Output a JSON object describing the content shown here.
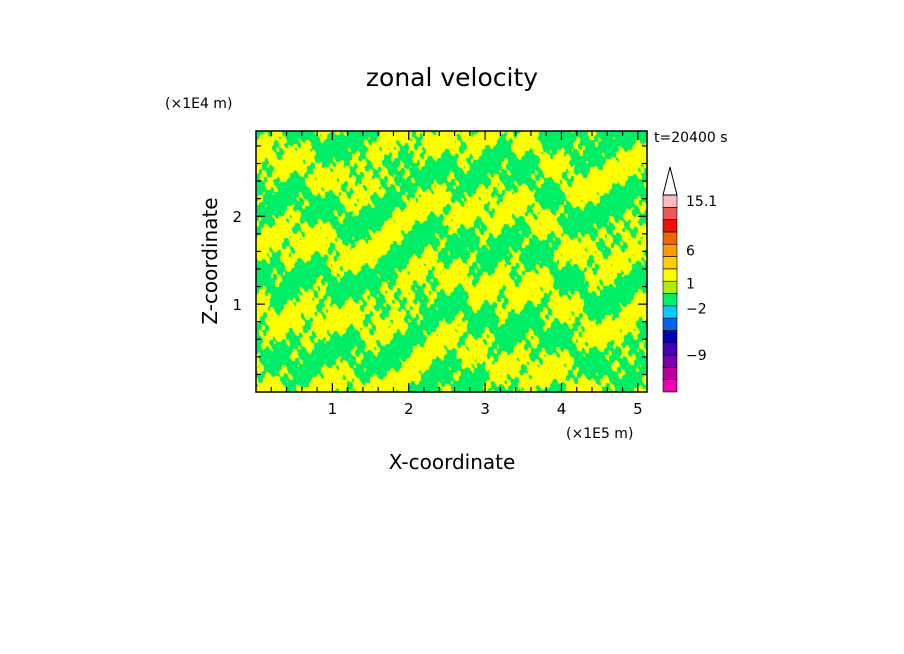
{
  "chart_data": {
    "type": "heatmap",
    "title": "zonal velocity",
    "xlabel": "X-coordinate",
    "ylabel": "Z-coordinate",
    "x_unit": "(×1E5 m)",
    "y_unit": "(×1E4 m)",
    "time_label": "t=20400 s",
    "xlim": [
      0,
      5.12
    ],
    "ylim": [
      0,
      2.97
    ],
    "x_ticks": [
      {
        "value": 1,
        "label": "1"
      },
      {
        "value": 2,
        "label": "2"
      },
      {
        "value": 3,
        "label": "3"
      },
      {
        "value": 4,
        "label": "4"
      },
      {
        "value": 5,
        "label": "5"
      }
    ],
    "y_ticks": [
      {
        "value": 1,
        "label": "1"
      },
      {
        "value": 2,
        "label": "2"
      }
    ],
    "x_minor_step": 0.2,
    "y_minor_step": 0.2,
    "field_colors": {
      "low": "#00ee66",
      "high": "#ffff00"
    },
    "colorbar": {
      "levels": [
        {
          "value": -15,
          "color": "#ee00aa"
        },
        {
          "value": -12,
          "color": "#bb0099"
        },
        {
          "value": -9,
          "color": "#7700aa"
        },
        {
          "value": -6,
          "color": "#4400bb"
        },
        {
          "value": -4,
          "color": "#0000bb"
        },
        {
          "value": -2,
          "color": "#0066ee"
        },
        {
          "value": -1,
          "color": "#00ccff"
        },
        {
          "value": 0,
          "color": "#00ee66"
        },
        {
          "value": 0.5,
          "color": "#aaee00"
        },
        {
          "value": 1,
          "color": "#ffff00"
        },
        {
          "value": 2,
          "color": "#ffcc00"
        },
        {
          "value": 3,
          "color": "#ff9900"
        },
        {
          "value": 6,
          "color": "#ee6600"
        },
        {
          "value": 9,
          "color": "#ee1100"
        },
        {
          "value": 12,
          "color": "#ee5555"
        },
        {
          "value": 15.1,
          "color": "#ffbbbb"
        }
      ],
      "over_color": "#ffffff",
      "labels": [
        {
          "label": "15.1",
          "at_level": 15
        },
        {
          "label": "6",
          "at_level": 11
        },
        {
          "label": "1",
          "at_level": 8.3
        },
        {
          "label": "−2",
          "at_level": 6.3
        },
        {
          "label": "−9",
          "at_level": 2.5
        }
      ]
    }
  }
}
